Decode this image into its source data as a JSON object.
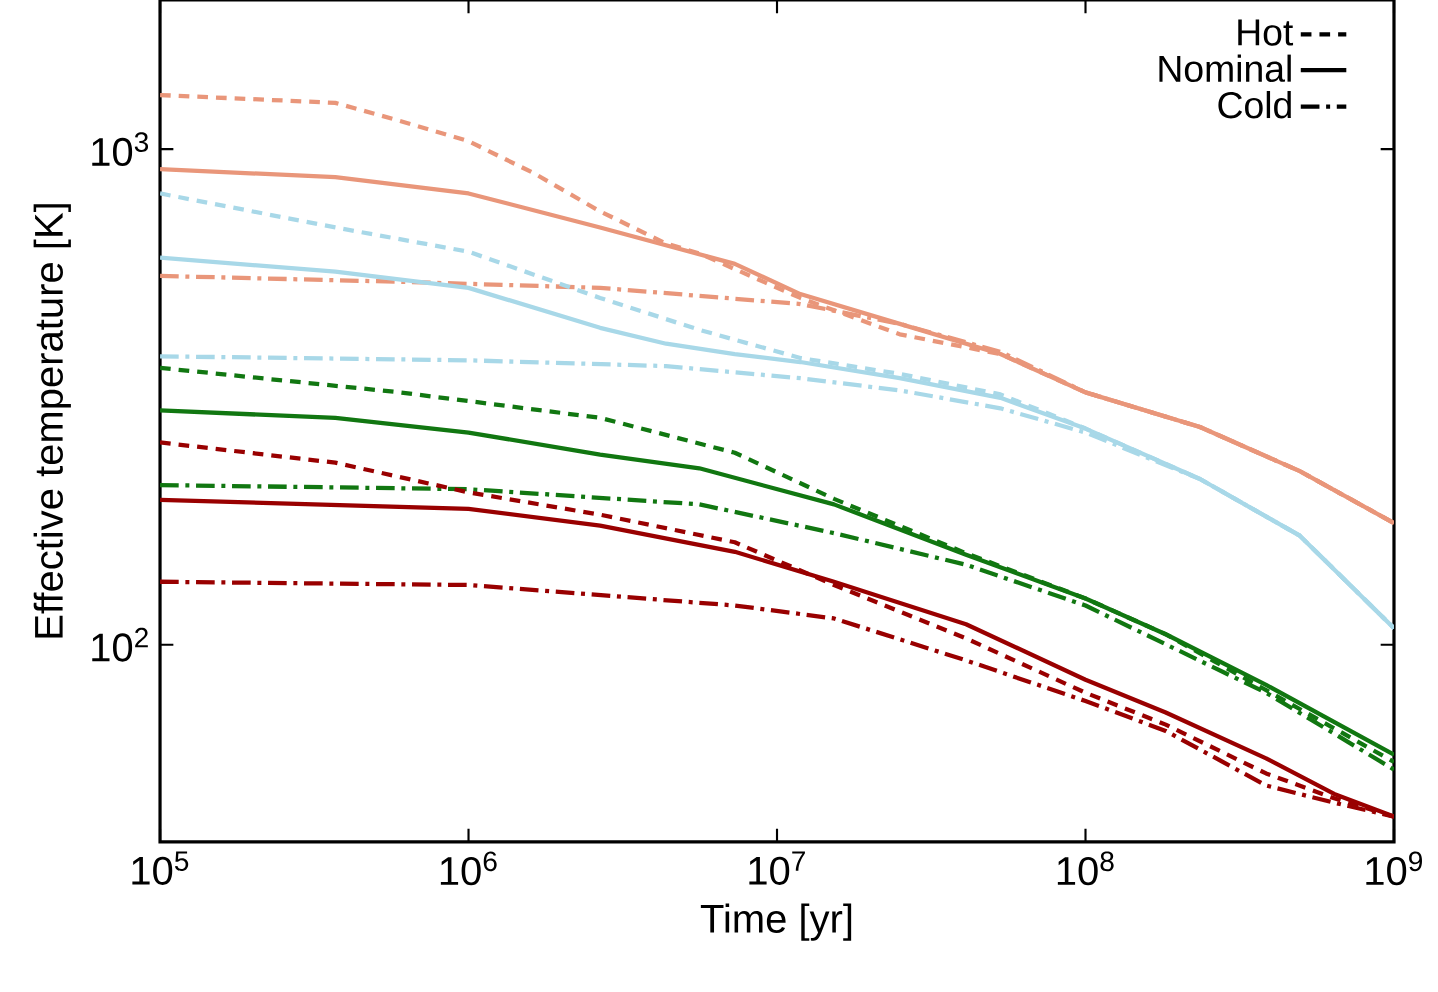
{
  "chart_data": {
    "type": "line",
    "xlabel": "Time [yr]",
    "ylabel": "Effective temperature [K]",
    "log": "xy",
    "legend": "top right",
    "xlim": [
      100000,
      1000000000
    ],
    "ylim": [
      40,
      2000
    ],
    "xticks": [
      {
        "value": 100000,
        "label": "10$^{5}$"
      },
      {
        "value": 1000000,
        "label": "10$^{6}$"
      },
      {
        "value": 10000000,
        "label": "10$^{7}$"
      },
      {
        "value": 100000000,
        "label": "10$^{8}$"
      },
      {
        "value": 1000000000,
        "label": "10$^{9}$"
      }
    ],
    "yticks": [
      {
        "value": 100,
        "label": "10$^{2}$"
      },
      {
        "value": 1000,
        "label": "10$^{3}$"
      }
    ],
    "series": [
      {
        "name": "Hot",
        "line_style": "dashed",
        "color": "#000000"
      },
      {
        "name": "Nominal",
        "line_style": "solid",
        "color": "#000000"
      },
      {
        "name": "Cold",
        "line_style": "dashdot",
        "color": "#000000"
      },
      {
        "line_style": "dashed",
        "color": "#e9967a",
        "x": [
          100000.0,
          370000.0,
          600000.0,
          1000000.0,
          1630000.0,
          2670000.0,
          4370000.0,
          5600000.0,
          11900000.0,
          25000000.0,
          53000000.0,
          100000000.0,
          235000000.0,
          495000000.0,
          1000000000.0
        ],
        "values": [
          1286,
          1240,
          1140,
          1038,
          894,
          749,
          645,
          616,
          501,
          423,
          386,
          323,
          275,
          224,
          176
        ]
      },
      {
        "line_style": "solid",
        "color": "#e9967a",
        "x": [
          100000.0,
          370000.0,
          1000000.0,
          2670000.0,
          7300000.0,
          11900000.0,
          25000000.0,
          53000000.0,
          100000000.0,
          235000000.0,
          495000000.0,
          1000000000.0
        ],
        "values": [
          911,
          878,
          814,
          695,
          587,
          510,
          444,
          386,
          323,
          275,
          224,
          176
        ]
      },
      {
        "line_style": "dashdot",
        "color": "#e9967a",
        "x": [
          100000.0,
          600000.0,
          2670000.0,
          11900000.0,
          25000000.0,
          53000000.0,
          100000000.0,
          235000000.0,
          495000000.0,
          1000000000.0
        ],
        "values": [
          555,
          540,
          525,
          487,
          444,
          390,
          323,
          275,
          224,
          176
        ]
      },
      {
        "line_style": "dashed",
        "color": "#a8d8e8",
        "x": [
          100000.0,
          370000.0,
          1000000.0,
          2670000.0,
          5600000.0,
          11900000.0,
          25000000.0,
          53000000.0,
          100000000.0,
          235000000.0,
          495000000.0,
          1000000000.0
        ],
        "values": [
          814,
          695,
          621,
          501,
          432,
          379,
          352,
          320,
          273,
          216,
          166,
          108
        ]
      },
      {
        "line_style": "solid",
        "color": "#a8d8e8",
        "x": [
          100000.0,
          370000.0,
          1000000.0,
          2670000.0,
          4370000.0,
          7300000.0,
          11900000.0,
          25000000.0,
          53000000.0,
          100000000.0,
          235000000.0,
          495000000.0,
          1000000000.0
        ],
        "values": [
          604,
          566,
          525,
          436,
          405,
          386,
          372,
          345,
          315,
          273,
          216,
          166,
          108
        ]
      },
      {
        "line_style": "dashdot",
        "color": "#a8d8e8",
        "x": [
          100000.0,
          1000000.0,
          4370000.0,
          11900000.0,
          25000000.0,
          53000000.0,
          100000000.0,
          235000000.0,
          495000000.0,
          1000000000.0
        ],
        "values": [
          382,
          375,
          365,
          345,
          326,
          300,
          268,
          216,
          166,
          108
        ]
      },
      {
        "line_style": "dashed",
        "color": "#117711",
        "x": [
          100000.0,
          600000.0,
          2670000.0,
          7300000.0,
          15300000.0,
          41000000.0,
          100000000.0,
          182000000.0,
          385000000.0,
          1000000000.0
        ],
        "values": [
          362,
          323,
          287,
          244,
          197,
          153,
          124,
          105,
          81,
          58
        ]
      },
      {
        "line_style": "solid",
        "color": "#117711",
        "x": [
          100000.0,
          370000.0,
          1000000.0,
          2670000.0,
          5600000.0,
          15300000.0,
          41000000.0,
          100000000.0,
          182000000.0,
          385000000.0,
          1000000000.0
        ],
        "values": [
          297,
          287,
          268,
          242,
          227,
          192,
          152,
          124,
          105,
          83,
          60
        ]
      },
      {
        "line_style": "dashdot",
        "color": "#117711",
        "x": [
          100000.0,
          1000000.0,
          5600000.0,
          15300000.0,
          41000000.0,
          100000000.0,
          385000000.0,
          1000000000.0
        ],
        "values": [
          210,
          206,
          192,
          168,
          145,
          120,
          80,
          56
        ]
      },
      {
        "line_style": "dashed",
        "color": "#990000",
        "x": [
          100000.0,
          370000.0,
          1000000.0,
          2670000.0,
          7300000.0,
          15300000.0,
          41000000.0,
          100000000.0,
          182000000.0,
          385000000.0,
          640000000.0,
          1000000000.0
        ],
        "values": [
          256,
          233,
          203,
          183,
          161,
          132,
          103,
          80,
          69,
          55,
          49,
          45
        ]
      },
      {
        "line_style": "solid",
        "color": "#990000",
        "x": [
          100000.0,
          1000000.0,
          2670000.0,
          7300000.0,
          15300000.0,
          41000000.0,
          100000000.0,
          182000000.0,
          385000000.0,
          640000000.0,
          1000000000.0
        ],
        "values": [
          196,
          188,
          174,
          154,
          134,
          110,
          85,
          73,
          59,
          50,
          45
        ]
      },
      {
        "line_style": "dashdot",
        "color": "#990000",
        "x": [
          100000.0,
          1000000.0,
          7300000.0,
          15300000.0,
          41000000.0,
          100000000.0,
          182000000.0,
          385000000.0,
          640000000.0,
          1000000000.0
        ],
        "values": [
          134,
          132,
          120,
          113,
          93,
          77,
          67,
          52,
          48,
          45
        ]
      }
    ]
  }
}
